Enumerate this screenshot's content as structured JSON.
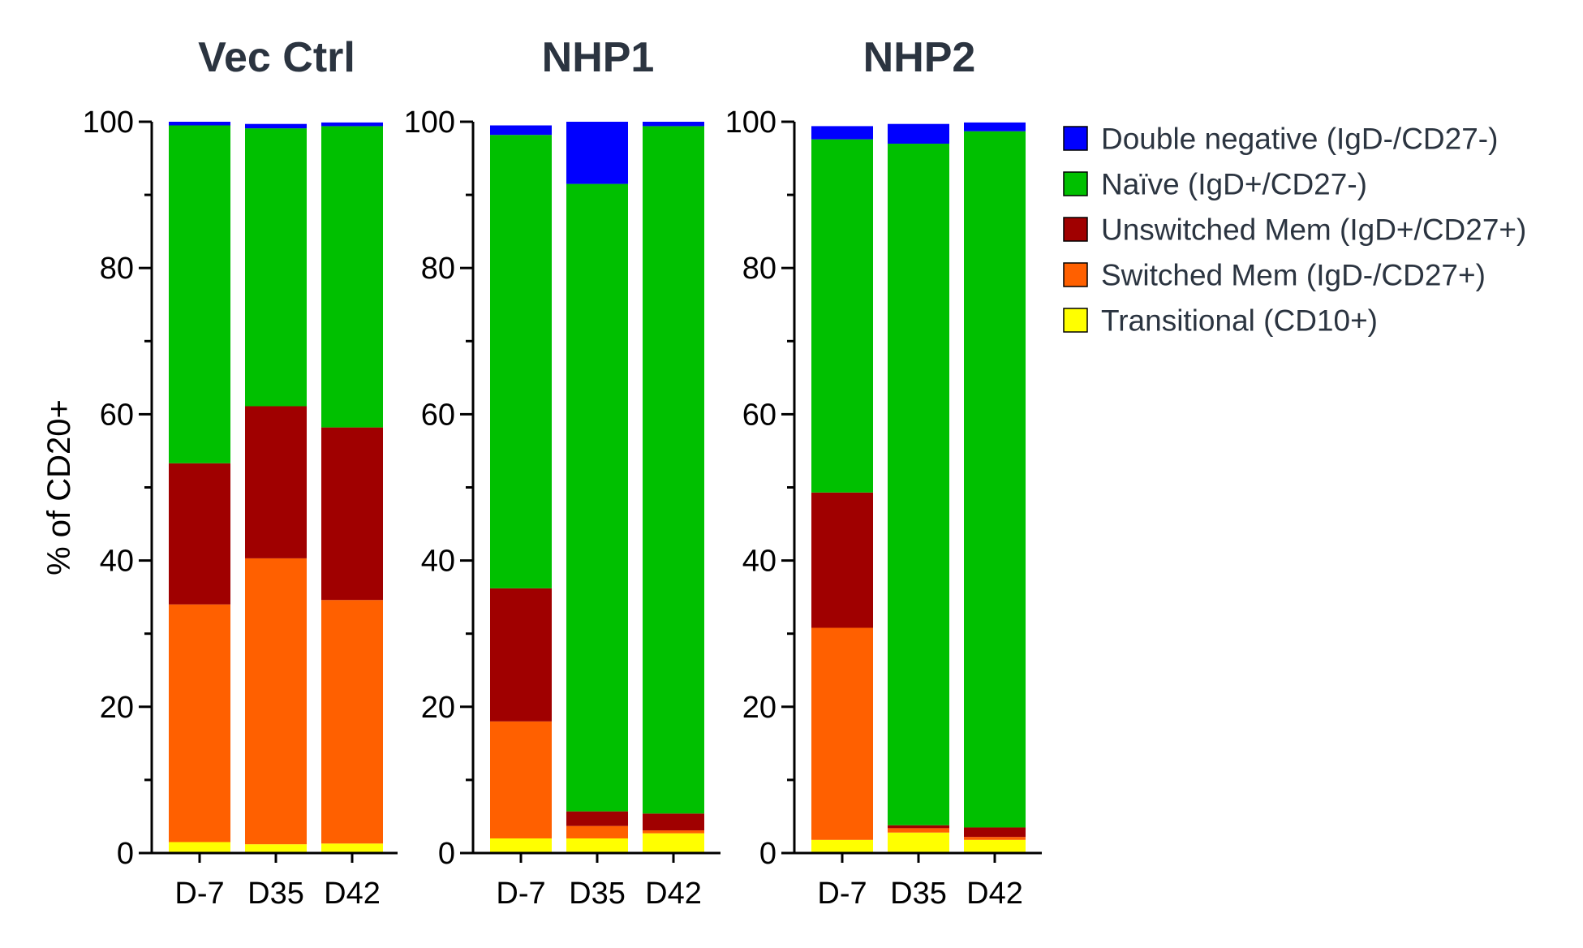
{
  "chart_data": {
    "type": "bar",
    "stacked": true,
    "ylabel": "% of CD20+",
    "ylim": [
      0,
      100
    ],
    "yticks": [
      0,
      20,
      40,
      60,
      80,
      100
    ],
    "categories": [
      "D-7",
      "D35",
      "D42"
    ],
    "legend_position": "right",
    "legend": [
      {
        "key": "double_negative",
        "label": "Double negative (IgD-/CD27-)",
        "color": "#0000ff"
      },
      {
        "key": "naive",
        "label": "Naïve (IgD+/CD27-)",
        "color": "#00c000"
      },
      {
        "key": "unswitched",
        "label": "Unswitched Mem (IgD+/CD27+)",
        "color": "#a00000"
      },
      {
        "key": "switched",
        "label": "Switched Mem (IgD-/CD27+)",
        "color": "#ff6000"
      },
      {
        "key": "transitional",
        "label": "Transitional (CD10+)",
        "color": "#ffff00"
      }
    ],
    "stack_order": [
      "transitional",
      "switched",
      "unswitched",
      "naive",
      "double_negative"
    ],
    "panels": [
      {
        "title": "Vec Ctrl",
        "series": [
          {
            "name": "Transitional (CD10+)",
            "key": "transitional",
            "values": [
              1.5,
              1.2,
              1.3
            ]
          },
          {
            "name": "Switched Mem (IgD-/CD27+)",
            "key": "switched",
            "values": [
              32.5,
              39.1,
              33.3
            ]
          },
          {
            "name": "Unswitched Mem (IgD+/CD27+)",
            "key": "unswitched",
            "values": [
              19.3,
              20.8,
              23.6
            ]
          },
          {
            "name": "Naïve (IgD+/CD27-)",
            "key": "naive",
            "values": [
              46.2,
              38.0,
              41.2
            ]
          },
          {
            "name": "Double negative (IgD-/CD27-)",
            "key": "double_negative",
            "values": [
              0.5,
              0.6,
              0.5
            ]
          }
        ]
      },
      {
        "title": "NHP1",
        "series": [
          {
            "name": "Transitional (CD10+)",
            "key": "transitional",
            "values": [
              2.0,
              2.0,
              2.7
            ]
          },
          {
            "name": "Switched Mem (IgD-/CD27+)",
            "key": "switched",
            "values": [
              16.0,
              1.7,
              0.4
            ]
          },
          {
            "name": "Unswitched Mem (IgD+/CD27+)",
            "key": "unswitched",
            "values": [
              18.2,
              2.0,
              2.3
            ]
          },
          {
            "name": "Naïve (IgD+/CD27-)",
            "key": "naive",
            "values": [
              62.0,
              85.8,
              94.0
            ]
          },
          {
            "name": "Double negative (IgD-/CD27-)",
            "key": "double_negative",
            "values": [
              1.3,
              8.5,
              0.6
            ]
          }
        ]
      },
      {
        "title": "NHP2",
        "series": [
          {
            "name": "Transitional (CD10+)",
            "key": "transitional",
            "values": [
              1.8,
              2.8,
              1.8
            ]
          },
          {
            "name": "Switched Mem (IgD-/CD27+)",
            "key": "switched",
            "values": [
              29.0,
              0.6,
              0.4
            ]
          },
          {
            "name": "Unswitched Mem (IgD+/CD27+)",
            "key": "unswitched",
            "values": [
              18.5,
              0.4,
              1.3
            ]
          },
          {
            "name": "Naïve (IgD+/CD27-)",
            "key": "naive",
            "values": [
              48.3,
              93.2,
              95.2
            ]
          },
          {
            "name": "Double negative (IgD-/CD27-)",
            "key": "double_negative",
            "values": [
              1.8,
              2.7,
              1.2
            ]
          }
        ]
      }
    ]
  }
}
